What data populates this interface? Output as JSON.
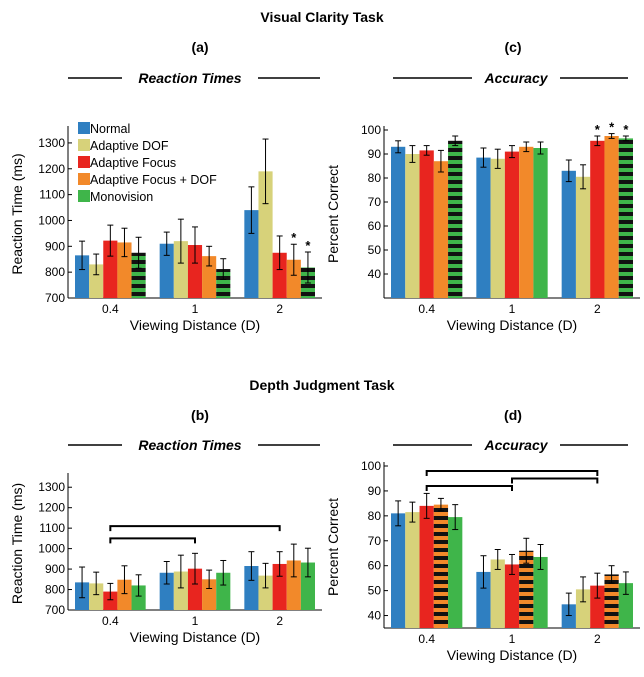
{
  "figure": {
    "top_title": "Visual Clarity Task",
    "bottom_title": "Depth Judgment Task"
  },
  "legend": {
    "items": [
      {
        "name": "Normal",
        "color": "#2f7fc1",
        "pattern": "solid"
      },
      {
        "name": "Adaptive DOF",
        "color": "#d7d27a",
        "pattern": "solid"
      },
      {
        "name": "Adaptive Focus",
        "color": "#e8251f",
        "pattern": "solid"
      },
      {
        "name": "Adaptive Focus + DOF",
        "color": "#f2892a",
        "pattern": "solid"
      },
      {
        "name": "Monovision",
        "color": "#3fb54a",
        "pattern": "stripes"
      }
    ]
  },
  "chart_data": [
    {
      "id": "a",
      "letter": "(a)",
      "subtitle": "Reaction Times",
      "type": "bar",
      "xlabel": "Viewing Distance (D)",
      "ylabel": "Reaction Time (ms)",
      "ylim": [
        700,
        1350
      ],
      "yticks": [
        700,
        800,
        900,
        1000,
        1100,
        1200,
        1300
      ],
      "categories": [
        "0.4",
        "1",
        "2"
      ],
      "series": [
        {
          "name": "Normal",
          "values": [
            865,
            910,
            1040
          ],
          "err": [
            55,
            45,
            90
          ],
          "stars": [
            false,
            false,
            false
          ],
          "hatch": [
            false,
            false,
            false
          ]
        },
        {
          "name": "Adaptive DOF",
          "values": [
            830,
            920,
            1190
          ],
          "err": [
            40,
            85,
            125
          ],
          "stars": [
            false,
            false,
            false
          ],
          "hatch": [
            false,
            false,
            false
          ]
        },
        {
          "name": "Adaptive Focus",
          "values": [
            922,
            905,
            875
          ],
          "err": [
            60,
            70,
            65
          ],
          "stars": [
            false,
            false,
            false
          ],
          "hatch": [
            false,
            false,
            false
          ]
        },
        {
          "name": "Adaptive Focus + DOF",
          "values": [
            915,
            862,
            848
          ],
          "err": [
            55,
            38,
            60
          ],
          "stars": [
            false,
            false,
            true
          ],
          "hatch": [
            false,
            false,
            false
          ]
        },
        {
          "name": "Monovision",
          "values": [
            875,
            812,
            818
          ],
          "err": [
            60,
            40,
            60
          ],
          "stars": [
            false,
            false,
            true
          ],
          "hatch": [
            true,
            true,
            true
          ]
        }
      ],
      "brackets": []
    },
    {
      "id": "c",
      "letter": "(c)",
      "subtitle": "Accuracy",
      "type": "bar",
      "xlabel": "Viewing Distance (D)",
      "ylabel": "Percent Correct",
      "ylim": [
        30,
        100
      ],
      "yticks": [
        40,
        50,
        60,
        70,
        80,
        90,
        100
      ],
      "categories": [
        "0.4",
        "1",
        "2"
      ],
      "series": [
        {
          "name": "Normal",
          "values": [
            93,
            88.5,
            83
          ],
          "err": [
            2.5,
            4,
            4.5
          ],
          "stars": [
            false,
            false,
            false
          ],
          "hatch": [
            false,
            false,
            false
          ]
        },
        {
          "name": "Adaptive DOF",
          "values": [
            90,
            88,
            80.5
          ],
          "err": [
            3.5,
            4,
            5
          ],
          "stars": [
            false,
            false,
            false
          ],
          "hatch": [
            false,
            false,
            false
          ]
        },
        {
          "name": "Adaptive Focus",
          "values": [
            91.5,
            91,
            95.5
          ],
          "err": [
            2,
            2.5,
            2
          ],
          "stars": [
            false,
            false,
            true
          ],
          "hatch": [
            false,
            false,
            false
          ]
        },
        {
          "name": "Adaptive Focus + DOF",
          "values": [
            87,
            93,
            97.5
          ],
          "err": [
            4.5,
            2,
            1
          ],
          "stars": [
            false,
            false,
            true
          ],
          "hatch": [
            false,
            false,
            false
          ]
        },
        {
          "name": "Monovision",
          "values": [
            95.5,
            92.5,
            96.5
          ],
          "err": [
            2,
            2.5,
            1
          ],
          "stars": [
            false,
            false,
            true
          ],
          "hatch": [
            true,
            false,
            true
          ]
        }
      ],
      "brackets": []
    },
    {
      "id": "b",
      "letter": "(b)",
      "subtitle": "Reaction Times",
      "type": "bar",
      "xlabel": "Viewing Distance (D)",
      "ylabel": "Reaction Time (ms)",
      "ylim": [
        700,
        1350
      ],
      "yticks": [
        700,
        800,
        900,
        1000,
        1100,
        1200,
        1300
      ],
      "categories": [
        "0.4",
        "1",
        "2"
      ],
      "series": [
        {
          "name": "Normal",
          "values": [
            835,
            882,
            915
          ],
          "err": [
            75,
            55,
            70
          ],
          "stars": [
            false,
            false,
            false
          ],
          "hatch": [
            false,
            false,
            false
          ]
        },
        {
          "name": "Adaptive DOF",
          "values": [
            830,
            888,
            868
          ],
          "err": [
            55,
            80,
            60
          ],
          "stars": [
            false,
            false,
            false
          ],
          "hatch": [
            false,
            false,
            false
          ]
        },
        {
          "name": "Adaptive Focus",
          "values": [
            790,
            902,
            925
          ],
          "err": [
            40,
            75,
            60
          ],
          "stars": [
            false,
            false,
            false
          ],
          "hatch": [
            false,
            false,
            false
          ]
        },
        {
          "name": "Adaptive Focus + DOF",
          "values": [
            848,
            850,
            942
          ],
          "err": [
            68,
            45,
            80
          ],
          "stars": [
            false,
            false,
            false
          ],
          "hatch": [
            false,
            false,
            false
          ]
        },
        {
          "name": "Monovision",
          "values": [
            820,
            882,
            932
          ],
          "err": [
            52,
            60,
            70
          ],
          "stars": [
            false,
            false,
            false
          ],
          "hatch": [
            false,
            false,
            false
          ]
        }
      ],
      "brackets": [
        {
          "from_category": 0,
          "to_category": 2,
          "y": 1110
        },
        {
          "from_category": 0,
          "to_category": 1,
          "y": 1050
        }
      ]
    },
    {
      "id": "d",
      "letter": "(d)",
      "subtitle": "Accuracy",
      "type": "bar",
      "xlabel": "Viewing Distance (D)",
      "ylabel": "Percent Correct",
      "ylim": [
        35,
        100
      ],
      "yticks": [
        40,
        50,
        60,
        70,
        80,
        90,
        100
      ],
      "categories": [
        "0.4",
        "1",
        "2"
      ],
      "series": [
        {
          "name": "Normal",
          "values": [
            81,
            57.5,
            44.5
          ],
          "err": [
            5,
            6.5,
            4.5
          ],
          "stars": [
            false,
            false,
            false
          ],
          "hatch": [
            false,
            false,
            false
          ]
        },
        {
          "name": "Adaptive DOF",
          "values": [
            81.5,
            62.5,
            50.5
          ],
          "err": [
            4,
            4,
            5
          ],
          "stars": [
            false,
            false,
            false
          ],
          "hatch": [
            false,
            false,
            false
          ]
        },
        {
          "name": "Adaptive Focus",
          "values": [
            84,
            60.5,
            52
          ],
          "err": [
            5,
            4,
            5
          ],
          "stars": [
            false,
            false,
            false
          ],
          "hatch": [
            false,
            false,
            false
          ]
        },
        {
          "name": "Adaptive Focus + DOF",
          "values": [
            84.5,
            66,
            56.5
          ],
          "err": [
            2.5,
            5,
            3.5
          ],
          "stars": [
            false,
            false,
            false
          ],
          "hatch": [
            true,
            true,
            true
          ]
        },
        {
          "name": "Monovision",
          "values": [
            79.5,
            63.5,
            53
          ],
          "err": [
            5,
            5,
            4.5
          ],
          "stars": [
            false,
            false,
            false
          ],
          "hatch": [
            false,
            false,
            false
          ]
        }
      ],
      "brackets": [
        {
          "from_category": 0,
          "to_category": 2,
          "y": 98
        },
        {
          "from_category": 1,
          "to_category": 2,
          "y": 95
        },
        {
          "from_category": 0,
          "to_category": 1,
          "y": 92
        }
      ]
    }
  ]
}
